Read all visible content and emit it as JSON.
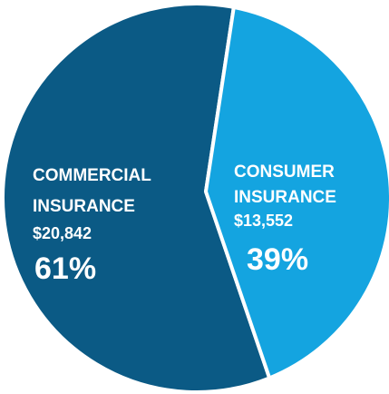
{
  "chart_data": {
    "type": "pie",
    "slices": [
      {
        "label_lines": [
          "COMMERCIAL",
          "INSURANCE"
        ],
        "value_label": "$20,842",
        "value": 20842,
        "percent_label": "61%",
        "color": "#0b5a85"
      },
      {
        "label_lines": [
          "CONSUMER",
          "INSURANCE"
        ],
        "value_label": "$13,552",
        "value": 13552,
        "percent_label": "39%",
        "color": "#14a4e0"
      }
    ],
    "separator_color": "#ffffff"
  }
}
